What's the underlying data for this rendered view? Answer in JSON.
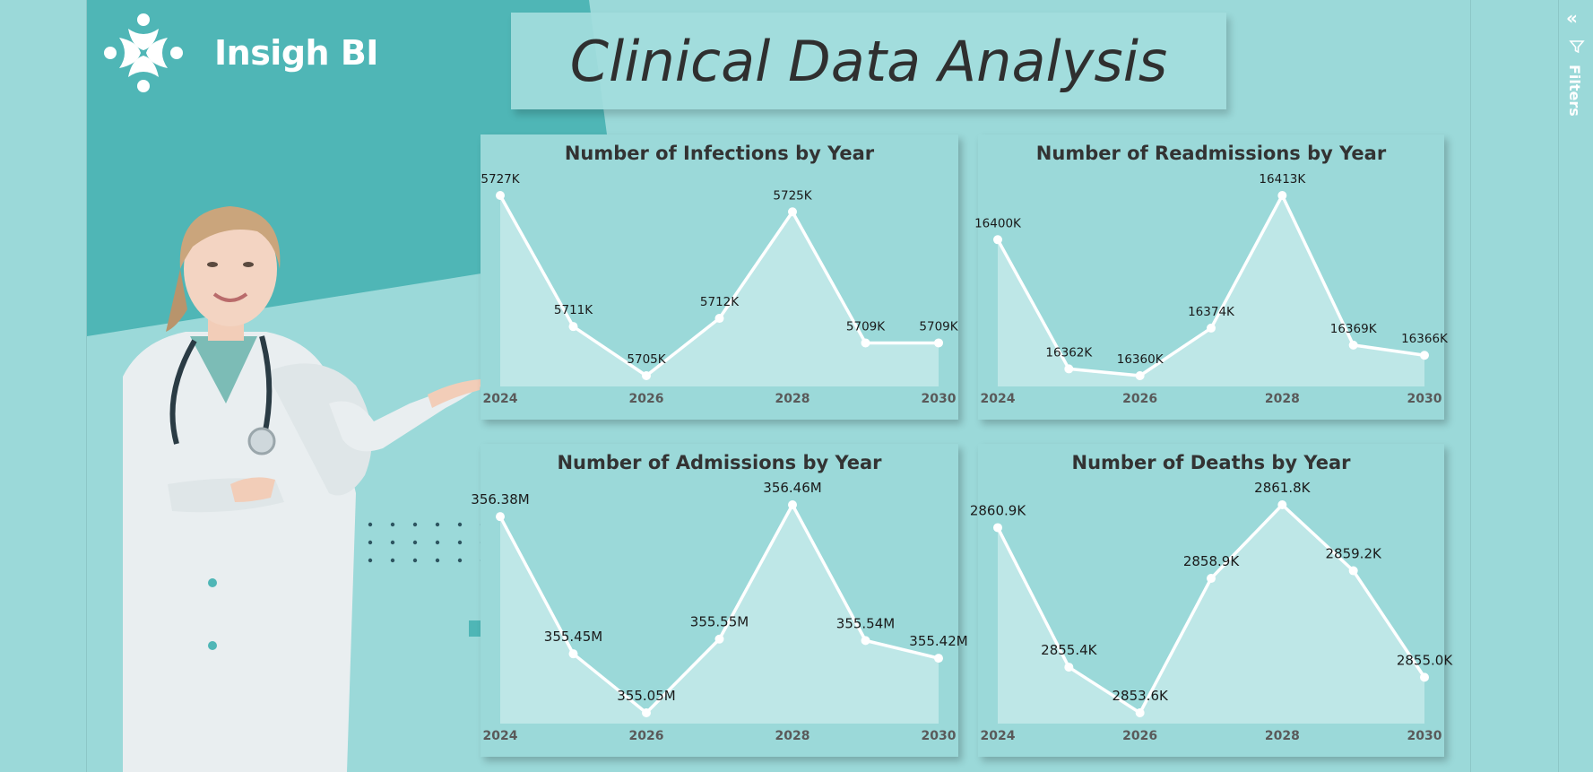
{
  "brand": {
    "name": "Insigh BI"
  },
  "title": "Clinical Data Analysis",
  "filters_pane": {
    "label": "Filters"
  },
  "colors": {
    "background": "#9bd9d9",
    "teal": "#4fb6b6",
    "line": "#ffffff",
    "area": "#c4e9e9"
  },
  "chart_data": [
    {
      "type": "area",
      "title": "Number of Infections by Year",
      "x": [
        "2024",
        "2025",
        "2026",
        "2027",
        "2028",
        "2029",
        "2030"
      ],
      "x_ticks": [
        "2024",
        "2026",
        "2028",
        "2030"
      ],
      "values": [
        5727,
        5711,
        5705,
        5712,
        5725,
        5709,
        5709
      ],
      "labels": [
        "5727K",
        "5711K",
        "5705K",
        "5712K",
        "5725K",
        "5709K",
        "5709K"
      ],
      "unit": "K"
    },
    {
      "type": "area",
      "title": "Number of Readmissions by Year",
      "x": [
        "2024",
        "2025",
        "2026",
        "2027",
        "2028",
        "2029",
        "2030"
      ],
      "x_ticks": [
        "2024",
        "2026",
        "2028",
        "2030"
      ],
      "values": [
        16400,
        16362,
        16360,
        16374,
        16413,
        16369,
        16366
      ],
      "labels": [
        "16400K",
        "16362K",
        "16360K",
        "16374K",
        "16413K",
        "16369K",
        "16366K"
      ],
      "unit": "K"
    },
    {
      "type": "area",
      "title": "Number of Admissions by Year",
      "x": [
        "2024",
        "2025",
        "2026",
        "2027",
        "2028",
        "2029",
        "2030"
      ],
      "x_ticks": [
        "2024",
        "2026",
        "2028",
        "2030"
      ],
      "values": [
        356.38,
        355.45,
        355.05,
        355.55,
        356.46,
        355.54,
        355.42
      ],
      "labels": [
        "356.38M",
        "355.45M",
        "355.05M",
        "355.55M",
        "356.46M",
        "355.54M",
        "355.42M"
      ],
      "unit": "M"
    },
    {
      "type": "area",
      "title": "Number of Deaths by Year",
      "x": [
        "2024",
        "2025",
        "2026",
        "2027",
        "2028",
        "2029",
        "2030"
      ],
      "x_ticks": [
        "2024",
        "2026",
        "2028",
        "2030"
      ],
      "values": [
        2860.9,
        2855.4,
        2853.6,
        2858.9,
        2861.8,
        2859.2,
        2855.0
      ],
      "labels": [
        "2860.9K",
        "2855.4K",
        "2853.6K",
        "2858.9K",
        "2861.8K",
        "2859.2K",
        "2855.0K"
      ],
      "unit": "K"
    }
  ]
}
